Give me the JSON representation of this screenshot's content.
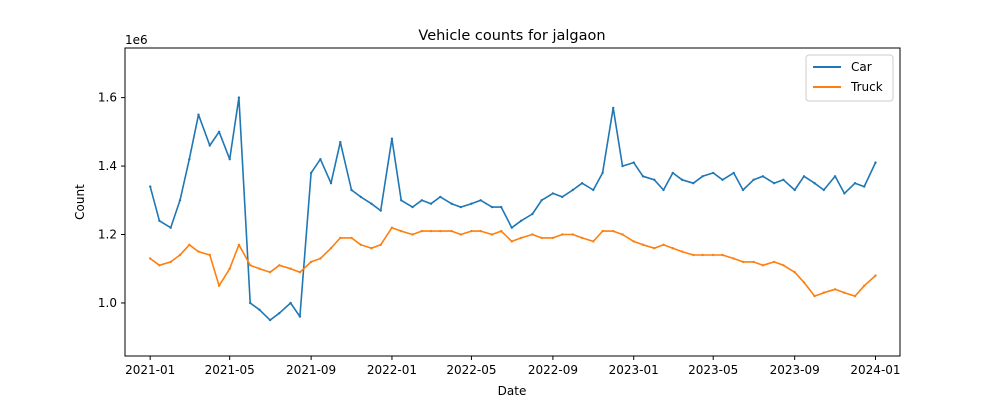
{
  "chart_data": {
    "type": "line",
    "title": "Vehicle counts for jalgaon",
    "xlabel": "Date",
    "ylabel": "Count",
    "y_scale_label": "1e6",
    "x_ticks": [
      "2021-01",
      "2021-05",
      "2021-09",
      "2022-01",
      "2022-05",
      "2022-09",
      "2023-01",
      "2023-05",
      "2023-09",
      "2024-01"
    ],
    "y_ticks": [
      1.0,
      1.2,
      1.4,
      1.6
    ],
    "xlim": [
      "2020-11-24",
      "2024-02-07"
    ],
    "ylim": [
      0.845,
      1.745
    ],
    "grid": false,
    "legend_position": "top-right",
    "x": [
      "2021-01-01",
      "2021-01-15",
      "2021-02-01",
      "2021-02-15",
      "2021-03-01",
      "2021-03-15",
      "2021-04-01",
      "2021-04-15",
      "2021-05-01",
      "2021-05-15",
      "2021-06-01",
      "2021-06-15",
      "2021-07-01",
      "2021-07-15",
      "2021-08-01",
      "2021-08-15",
      "2021-09-01",
      "2021-09-15",
      "2021-10-01",
      "2021-10-15",
      "2021-11-01",
      "2021-11-15",
      "2021-12-01",
      "2021-12-15",
      "2022-01-01",
      "2022-01-15",
      "2022-02-01",
      "2022-02-15",
      "2022-03-01",
      "2022-03-15",
      "2022-04-01",
      "2022-04-15",
      "2022-05-01",
      "2022-05-15",
      "2022-06-01",
      "2022-06-15",
      "2022-07-01",
      "2022-07-15",
      "2022-08-01",
      "2022-08-15",
      "2022-09-01",
      "2022-09-15",
      "2022-10-01",
      "2022-10-15",
      "2022-11-01",
      "2022-11-15",
      "2022-12-01",
      "2022-12-15",
      "2023-01-01",
      "2023-01-15",
      "2023-02-01",
      "2023-02-15",
      "2023-03-01",
      "2023-03-15",
      "2023-04-01",
      "2023-04-15",
      "2023-05-01",
      "2023-05-15",
      "2023-06-01",
      "2023-06-15",
      "2023-07-01",
      "2023-07-15",
      "2023-08-01",
      "2023-08-15",
      "2023-09-01",
      "2023-09-15",
      "2023-10-01",
      "2023-10-15",
      "2023-11-01",
      "2023-11-15",
      "2023-12-01",
      "2023-12-15",
      "2024-01-01"
    ],
    "series": [
      {
        "name": "Car",
        "color": "#1f77b4",
        "values": [
          1.34,
          1.24,
          1.22,
          1.3,
          1.42,
          1.55,
          1.46,
          1.5,
          1.42,
          1.6,
          1.0,
          0.98,
          0.95,
          0.97,
          1.0,
          0.96,
          1.38,
          1.42,
          1.35,
          1.47,
          1.33,
          1.31,
          1.29,
          1.27,
          1.48,
          1.3,
          1.28,
          1.3,
          1.29,
          1.31,
          1.29,
          1.28,
          1.29,
          1.3,
          1.28,
          1.28,
          1.22,
          1.24,
          1.26,
          1.3,
          1.32,
          1.31,
          1.33,
          1.35,
          1.33,
          1.38,
          1.57,
          1.4,
          1.41,
          1.37,
          1.36,
          1.33,
          1.38,
          1.36,
          1.35,
          1.37,
          1.38,
          1.36,
          1.38,
          1.33,
          1.36,
          1.37,
          1.35,
          1.36,
          1.33,
          1.37,
          1.35,
          1.33,
          1.37,
          1.32,
          1.35,
          1.34,
          1.41
        ]
      },
      {
        "name": "Truck",
        "color": "#ff7f0e",
        "values": [
          1.13,
          1.11,
          1.12,
          1.14,
          1.17,
          1.15,
          1.14,
          1.05,
          1.1,
          1.17,
          1.11,
          1.1,
          1.09,
          1.11,
          1.1,
          1.09,
          1.12,
          1.13,
          1.16,
          1.19,
          1.19,
          1.17,
          1.16,
          1.17,
          1.22,
          1.21,
          1.2,
          1.21,
          1.21,
          1.21,
          1.21,
          1.2,
          1.21,
          1.21,
          1.2,
          1.21,
          1.18,
          1.19,
          1.2,
          1.19,
          1.19,
          1.2,
          1.2,
          1.19,
          1.18,
          1.21,
          1.21,
          1.2,
          1.18,
          1.17,
          1.16,
          1.17,
          1.16,
          1.15,
          1.14,
          1.14,
          1.14,
          1.14,
          1.13,
          1.12,
          1.12,
          1.11,
          1.12,
          1.11,
          1.09,
          1.06,
          1.02,
          1.03,
          1.04,
          1.03,
          1.02,
          1.05,
          1.08
        ]
      }
    ]
  }
}
